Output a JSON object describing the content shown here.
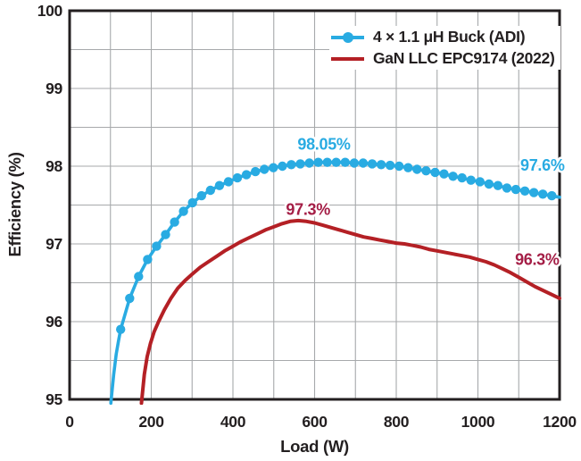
{
  "chart_data": {
    "type": "line",
    "title": "",
    "xlabel": "Load (W)",
    "ylabel": "Efficiency (%)",
    "xlim": [
      0,
      1200
    ],
    "ylim": [
      95,
      100
    ],
    "xticks": [
      0,
      200,
      400,
      600,
      800,
      1000,
      1200
    ],
    "yticks": [
      95,
      96,
      97,
      98,
      99,
      100
    ],
    "xticks_minor": [
      100,
      300,
      500,
      700,
      900,
      1100
    ],
    "yticks_minor": [
      95.5,
      96.5,
      97.5,
      98.5,
      99.5
    ],
    "grid": true,
    "legend_position": "top-right-inside",
    "colors": {
      "axis": "#231f20",
      "grid": "#a7a9ab",
      "background": "#ffffff"
    },
    "series": [
      {
        "name": "4 × 1.1 μH Buck (ADI)",
        "color": "#29abe2",
        "marker": "circle",
        "marker_radius": 5.2,
        "line_width": 3.6,
        "lead_in": [
          [
            101,
            94.95
          ],
          [
            108,
            95.32
          ],
          [
            114,
            95.58
          ],
          [
            120,
            95.76
          ]
        ],
        "points": [
          [
            125,
            95.9
          ],
          [
            147,
            96.3
          ],
          [
            169,
            96.58
          ],
          [
            191,
            96.8
          ],
          [
            213,
            96.97
          ],
          [
            235,
            97.12
          ],
          [
            257,
            97.28
          ],
          [
            279,
            97.42
          ],
          [
            301,
            97.53
          ],
          [
            323,
            97.62
          ],
          [
            345,
            97.69
          ],
          [
            367,
            97.75
          ],
          [
            389,
            97.8
          ],
          [
            411,
            97.85
          ],
          [
            433,
            97.89
          ],
          [
            455,
            97.93
          ],
          [
            477,
            97.96
          ],
          [
            499,
            97.98
          ],
          [
            521,
            98.0
          ],
          [
            543,
            98.02
          ],
          [
            565,
            98.03
          ],
          [
            587,
            98.04
          ],
          [
            609,
            98.05
          ],
          [
            631,
            98.05
          ],
          [
            653,
            98.05
          ],
          [
            675,
            98.05
          ],
          [
            697,
            98.04
          ],
          [
            719,
            98.04
          ],
          [
            741,
            98.03
          ],
          [
            763,
            98.02
          ],
          [
            785,
            98.01
          ],
          [
            807,
            98.0
          ],
          [
            829,
            97.98
          ],
          [
            851,
            97.96
          ],
          [
            873,
            97.94
          ],
          [
            895,
            97.92
          ],
          [
            917,
            97.9
          ],
          [
            939,
            97.87
          ],
          [
            961,
            97.85
          ],
          [
            983,
            97.82
          ],
          [
            1005,
            97.8
          ],
          [
            1027,
            97.77
          ],
          [
            1049,
            97.75
          ],
          [
            1071,
            97.72
          ],
          [
            1093,
            97.7
          ],
          [
            1115,
            97.68
          ],
          [
            1137,
            97.66
          ],
          [
            1159,
            97.64
          ],
          [
            1181,
            97.62
          ]
        ],
        "lead_out": [
          [
            1200,
            97.6
          ]
        ],
        "peak_label": "98.05%",
        "end_label": "97.6%"
      },
      {
        "name": "GaN LLC EPC9174 (2022)",
        "color": "#b42025",
        "marker": "none",
        "line_width": 4,
        "lead_in": [],
        "points": [
          [
            176,
            94.95
          ],
          [
            183,
            95.32
          ],
          [
            190,
            95.55
          ],
          [
            198,
            95.72
          ],
          [
            207,
            95.87
          ],
          [
            218,
            96.0
          ],
          [
            232,
            96.15
          ],
          [
            248,
            96.3
          ],
          [
            265,
            96.43
          ],
          [
            283,
            96.53
          ],
          [
            300,
            96.61
          ],
          [
            320,
            96.7
          ],
          [
            340,
            96.77
          ],
          [
            360,
            96.84
          ],
          [
            380,
            96.91
          ],
          [
            400,
            96.97
          ],
          [
            420,
            97.03
          ],
          [
            440,
            97.08
          ],
          [
            460,
            97.13
          ],
          [
            480,
            97.18
          ],
          [
            500,
            97.22
          ],
          [
            520,
            97.26
          ],
          [
            540,
            97.29
          ],
          [
            560,
            97.3
          ],
          [
            580,
            97.29
          ],
          [
            600,
            97.27
          ],
          [
            620,
            97.24
          ],
          [
            640,
            97.21
          ],
          [
            660,
            97.18
          ],
          [
            680,
            97.15
          ],
          [
            700,
            97.12
          ],
          [
            720,
            97.09
          ],
          [
            740,
            97.07
          ],
          [
            760,
            97.05
          ],
          [
            780,
            97.03
          ],
          [
            800,
            97.01
          ],
          [
            820,
            97.0
          ],
          [
            840,
            96.98
          ],
          [
            860,
            96.96
          ],
          [
            880,
            96.93
          ],
          [
            900,
            96.91
          ],
          [
            920,
            96.89
          ],
          [
            940,
            96.87
          ],
          [
            960,
            96.85
          ],
          [
            980,
            96.83
          ],
          [
            1000,
            96.8
          ],
          [
            1020,
            96.77
          ],
          [
            1040,
            96.73
          ],
          [
            1060,
            96.68
          ],
          [
            1080,
            96.63
          ],
          [
            1100,
            96.57
          ],
          [
            1120,
            96.51
          ],
          [
            1140,
            96.45
          ],
          [
            1160,
            96.4
          ],
          [
            1180,
            96.35
          ],
          [
            1200,
            96.3
          ]
        ],
        "lead_out": [],
        "peak_label": "97.3%",
        "end_label": "96.3%"
      }
    ],
    "annotations": [
      {
        "text": "98.05%",
        "x": 623,
        "y": 98.28,
        "color": "#29abe2"
      },
      {
        "text": "97.6%",
        "x": 1158,
        "y": 98.01,
        "color": "#29abe2"
      },
      {
        "text": "97.3%",
        "x": 584,
        "y": 97.44,
        "color": "#a41e46"
      },
      {
        "text": "96.3%",
        "x": 1145,
        "y": 96.8,
        "color": "#a41e46"
      }
    ]
  }
}
